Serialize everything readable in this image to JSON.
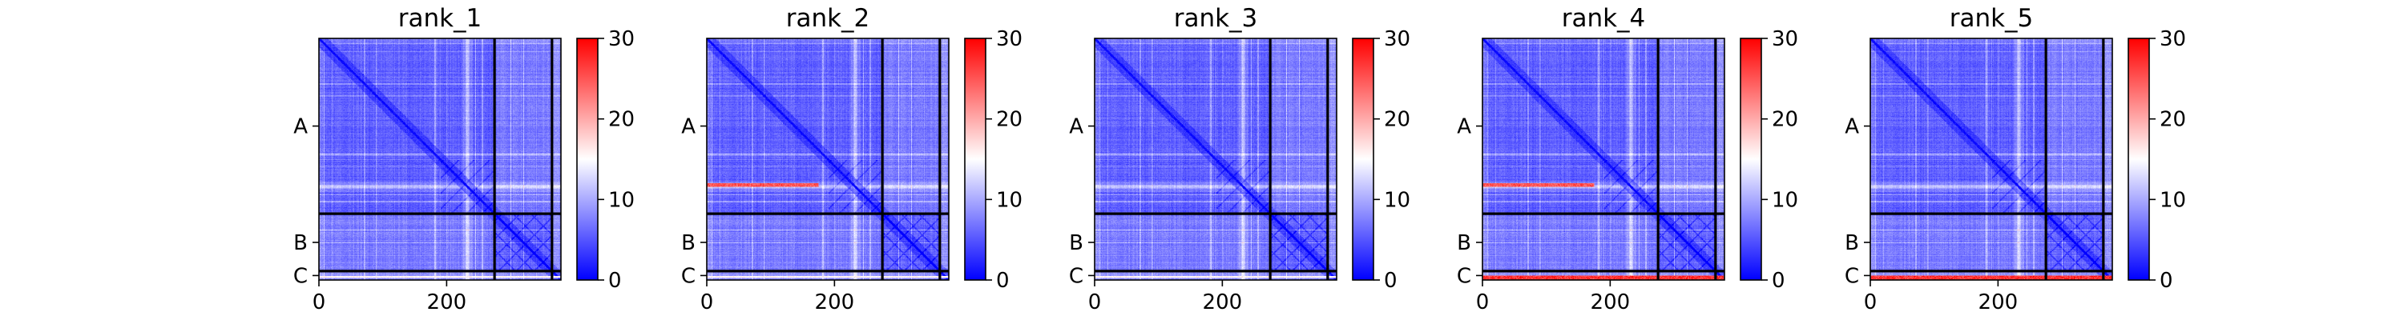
{
  "chart_data": {
    "type": "heatmap",
    "colormap": "bwr",
    "colors": {
      "low": "#0000ff",
      "mid": "#ffffff",
      "high": "#ff0000"
    },
    "vmin": 0,
    "vmax": 30,
    "matrix_size": 379,
    "chain_boundaries": [
      0,
      275,
      365,
      379
    ],
    "chains": [
      "A",
      "B",
      "C"
    ],
    "x_ticks": [
      0,
      200
    ],
    "colorbar_ticks": [
      0,
      10,
      20,
      30
    ],
    "grid": false,
    "panels": [
      {
        "title": "rank_1",
        "red_row_band": false,
        "red_bottom_c": false
      },
      {
        "title": "rank_2",
        "red_row_band": true,
        "red_bottom_c": false
      },
      {
        "title": "rank_3",
        "red_row_band": false,
        "red_bottom_c": false
      },
      {
        "title": "rank_4",
        "red_row_band": true,
        "red_bottom_c": true
      },
      {
        "title": "rank_5",
        "red_row_band": false,
        "red_bottom_c": true
      }
    ]
  }
}
